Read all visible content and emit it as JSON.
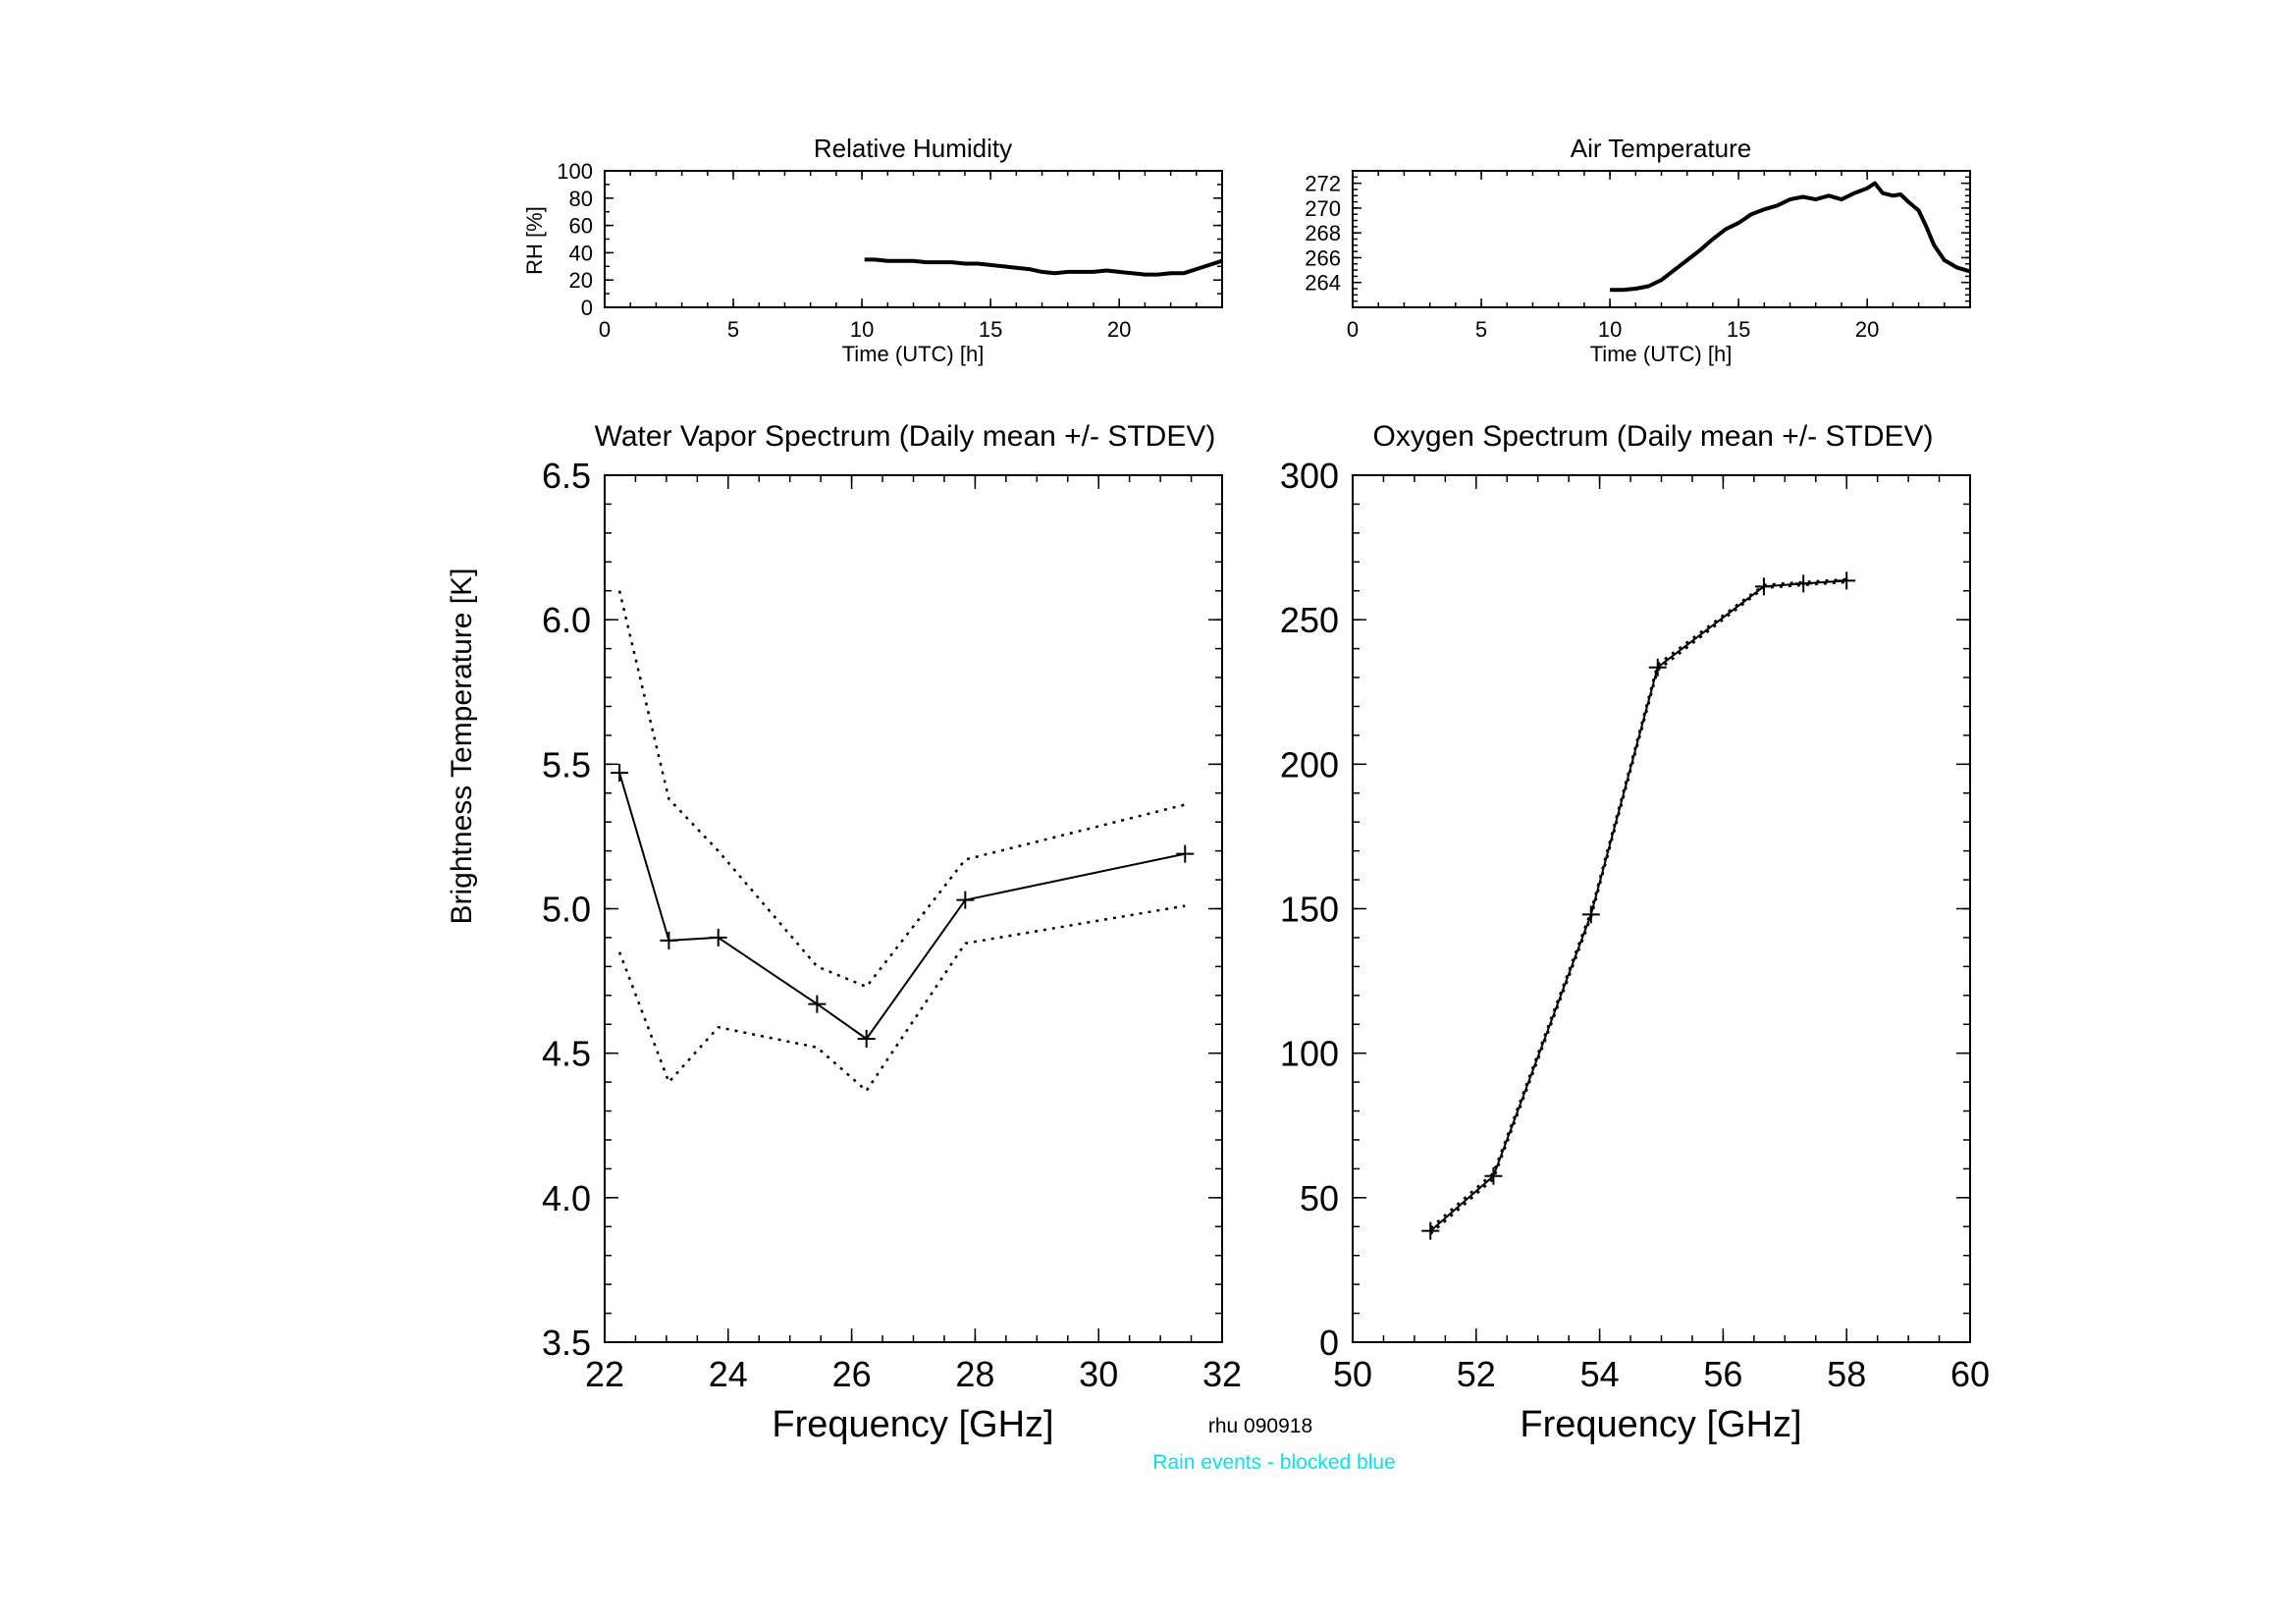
{
  "footer": {
    "id_text": "rhu 090918",
    "rain_text": "Rain events - blocked blue",
    "rain_color": "#00e5ee"
  },
  "chart_data": [
    {
      "id": "rh",
      "type": "line",
      "title": "Relative Humidity",
      "xlabel": "Time (UTC) [h]",
      "ylabel": "RH [%]",
      "xlim": [
        0,
        24
      ],
      "ylim": [
        0,
        100
      ],
      "xticks": [
        0,
        5,
        10,
        15,
        20
      ],
      "yticks": [
        0,
        20,
        40,
        60,
        80,
        100
      ],
      "xminor": 1,
      "yminor": 10,
      "grid": false,
      "series": [
        {
          "x": [
            10.1,
            10.5,
            11,
            11.5,
            12,
            12.5,
            13,
            13.5,
            14,
            14.5,
            15,
            15.5,
            16,
            16.5,
            17,
            17.5,
            18,
            18.5,
            19,
            19.5,
            20,
            20.5,
            21,
            21.5,
            22,
            22.5,
            23,
            23.5,
            24
          ],
          "y": [
            35,
            35,
            34,
            34,
            34,
            33,
            33,
            33,
            32,
            32,
            31,
            30,
            29,
            28,
            26,
            25,
            26,
            26,
            26,
            27,
            26,
            25,
            24,
            24,
            25,
            25,
            28,
            31,
            34
          ]
        }
      ]
    },
    {
      "id": "ta",
      "type": "line",
      "title": "Air Temperature",
      "xlabel": "Time (UTC) [h]",
      "ylabel": "",
      "xlim": [
        0,
        24
      ],
      "ylim": [
        262,
        273
      ],
      "xticks": [
        0,
        5,
        10,
        15,
        20
      ],
      "yticks": [
        264,
        266,
        268,
        270,
        272
      ],
      "xminor": 1,
      "yminor": 0.5,
      "grid": false,
      "series": [
        {
          "x": [
            10,
            10.5,
            11,
            11.5,
            12,
            12.5,
            13,
            13.5,
            14,
            14.5,
            15,
            15.5,
            16,
            16.5,
            17,
            17.5,
            18,
            18.5,
            19,
            19.5,
            20,
            20.3,
            20.6,
            21,
            21.3,
            21.6,
            22,
            22.3,
            22.6,
            23,
            23.5,
            24
          ],
          "y": [
            263.4,
            263.4,
            263.5,
            263.7,
            264.2,
            265.0,
            265.8,
            266.6,
            267.5,
            268.3,
            268.8,
            269.5,
            269.9,
            270.2,
            270.7,
            270.9,
            270.7,
            271.0,
            270.7,
            271.2,
            271.6,
            272.0,
            271.2,
            271.0,
            271.1,
            270.5,
            269.8,
            268.5,
            267.0,
            265.8,
            265.2,
            264.9
          ]
        }
      ]
    },
    {
      "id": "wv",
      "type": "line",
      "title": "Water Vapor Spectrum (Daily mean +/- STDEV)",
      "xlabel": "Frequency [GHz]",
      "ylabel": "Brightness Temperature [K]",
      "xlim": [
        22,
        32
      ],
      "ylim": [
        3.5,
        6.5
      ],
      "xticks": [
        22,
        24,
        26,
        28,
        30,
        32
      ],
      "yticks": [
        3.5,
        4.0,
        4.5,
        5.0,
        5.5,
        6.0,
        6.5
      ],
      "xtick_decimals": 0,
      "ytick_decimals": 1,
      "xminor": 0.5,
      "yminor": 0.1,
      "grid": false,
      "x": [
        22.24,
        23.04,
        23.84,
        25.44,
        26.24,
        27.84,
        31.4
      ],
      "series": [
        {
          "style": "solid",
          "markers": true,
          "values": [
            5.47,
            4.89,
            4.9,
            4.67,
            4.55,
            5.03,
            5.19
          ]
        },
        {
          "style": "dotted",
          "markers": false,
          "values": [
            6.1,
            5.38,
            5.2,
            4.8,
            4.73,
            5.17,
            5.36
          ]
        },
        {
          "style": "dotted",
          "markers": false,
          "values": [
            4.85,
            4.4,
            4.59,
            4.52,
            4.37,
            4.88,
            5.01
          ]
        }
      ]
    },
    {
      "id": "o2",
      "type": "line",
      "title": "Oxygen Spectrum (Daily mean +/- STDEV)",
      "xlabel": "Frequency [GHz]",
      "ylabel": "",
      "xlim": [
        50,
        60
      ],
      "ylim": [
        0,
        300
      ],
      "xticks": [
        50,
        52,
        54,
        56,
        58,
        60
      ],
      "yticks": [
        0,
        50,
        100,
        150,
        200,
        250,
        300
      ],
      "xtick_decimals": 0,
      "ytick_decimals": 0,
      "xminor": 0.5,
      "yminor": 10,
      "grid": false,
      "x": [
        51.26,
        52.28,
        53.86,
        54.94,
        56.66,
        57.3,
        58.0
      ],
      "series": [
        {
          "style": "solid",
          "markers": true,
          "values": [
            38.5,
            57.5,
            148.0,
            233.5,
            261.5,
            262.5,
            263.5
          ]
        },
        {
          "style": "dotted",
          "markers": false,
          "values": [
            39.5,
            58.5,
            149.0,
            234.5,
            262.0,
            263.0,
            264.0
          ]
        },
        {
          "style": "dotted",
          "markers": false,
          "values": [
            37.5,
            56.5,
            147.0,
            232.5,
            261.0,
            262.0,
            263.0
          ]
        }
      ]
    }
  ]
}
